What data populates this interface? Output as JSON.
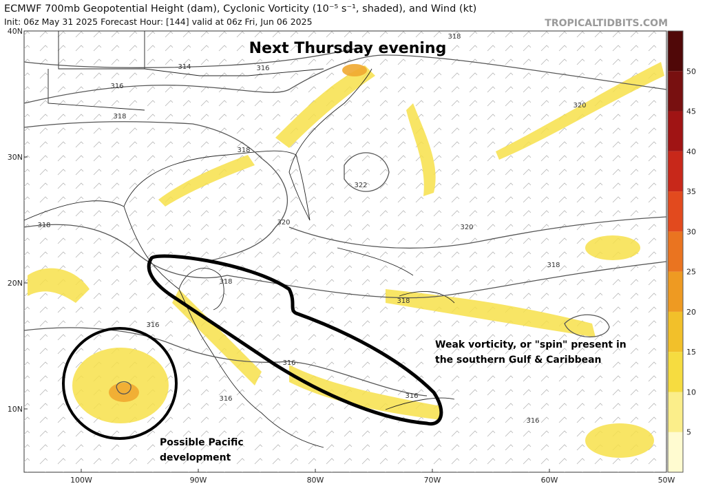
{
  "header": {
    "title": "ECMWF 700mb Geopotential Height (dam), Cyclonic Vorticity (10⁻⁵ s⁻¹, shaded), and Wind (kt)",
    "init_line": "Init: 06z May 31 2025   Forecast Hour: [144]   valid at 06z Fri, Jun 06 2025",
    "credit": "TROPICALTIDBITS.COM"
  },
  "annotations": {
    "headline": "Next Thursday evening",
    "caribbean": [
      "Weak vorticity, or \"spin\" present in",
      "the southern Gulf & Caribbean"
    ],
    "pacific": [
      "Possible Pacific",
      "development"
    ]
  },
  "lat_labels": [
    "40N",
    "30N",
    "20N",
    "10N"
  ],
  "lon_labels": [
    "100W",
    "90W",
    "80W",
    "70W",
    "60W",
    "50W"
  ],
  "colorbar_labels": [
    "5",
    "10",
    "15",
    "20",
    "25",
    "30",
    "35",
    "40",
    "45",
    "50"
  ],
  "contour_labels": [
    "314",
    "316",
    "316",
    "318",
    "318",
    "318",
    "320",
    "320",
    "322",
    "320",
    "318",
    "318",
    "318",
    "316",
    "316",
    "316",
    "316",
    "316",
    "318"
  ]
}
